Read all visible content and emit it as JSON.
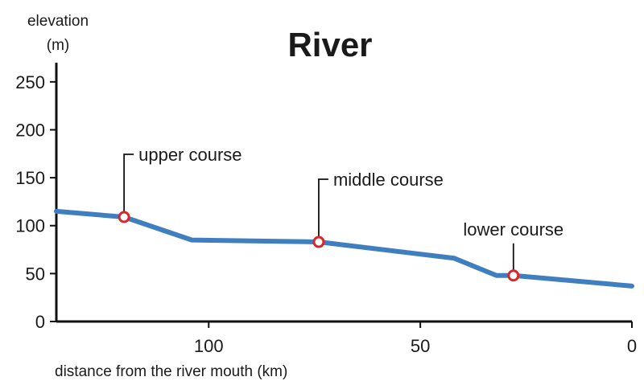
{
  "chart_data": {
    "type": "line",
    "title": "River",
    "title_color": "#3f7fc0",
    "ylabel_line1": "elevation",
    "ylabel_line2": "(m)",
    "xlabel": "distance from the river mouth (km)",
    "xlim": [
      136,
      0
    ],
    "ylim": [
      0,
      270
    ],
    "x_ticks": [
      100,
      50,
      0
    ],
    "y_ticks": [
      0,
      50,
      100,
      150,
      200,
      250
    ],
    "x_reversed": true,
    "grid": false,
    "series_color": "#3f7fc0",
    "marker_color": "#d9262a",
    "series": [
      {
        "x": [
          136,
          120,
          104,
          74,
          42,
          32,
          28,
          0
        ],
        "y": [
          115,
          109,
          85,
          83,
          66,
          48,
          48,
          37
        ]
      }
    ],
    "annotations": [
      {
        "text": "upper course",
        "x": 120,
        "y": 109
      },
      {
        "text": "middle course",
        "x": 74,
        "y": 83
      },
      {
        "text": "lower course",
        "x": 28,
        "y": 48
      }
    ]
  }
}
